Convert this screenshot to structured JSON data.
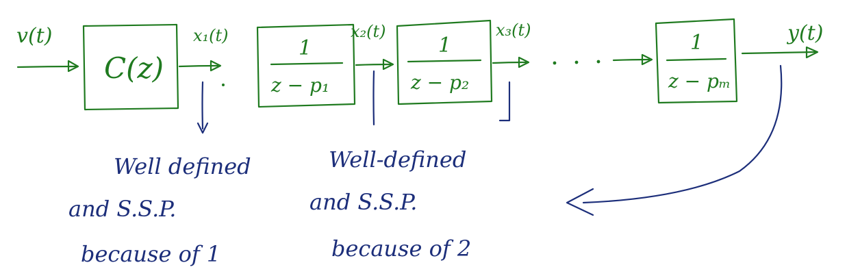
{
  "colors": {
    "diagram_ink": "#1f7a1f",
    "annotation_ink": "#1c2e7a",
    "background": "#ffffff"
  },
  "signals": {
    "input": "v(t)",
    "x1": "x₁(t)",
    "x2": "x₂(t)",
    "x3": "x₃(t)",
    "output": "y(t)"
  },
  "blocks": {
    "controller": "C(z)",
    "stage1": {
      "numerator": "1",
      "denominator": "z − p₁"
    },
    "stage2": {
      "numerator": "1",
      "denominator": "z − p₂"
    },
    "stageM": {
      "numerator": "1",
      "denominator": "z − pₘ"
    }
  },
  "ellipsis": ". . .",
  "notes": {
    "note1": {
      "line1": "Well defined",
      "line2": "and S.S.P.",
      "line3": "because of 1"
    },
    "note2": {
      "line1": "Well-defined",
      "line2": "and S.S.P.",
      "line3": "because of 2"
    }
  }
}
